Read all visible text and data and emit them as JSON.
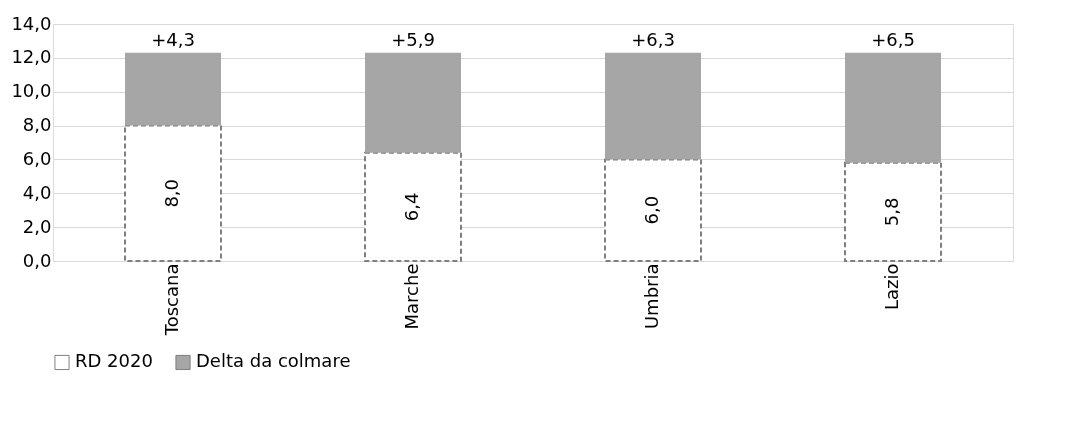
{
  "chart_data": {
    "type": "bar",
    "stacked": true,
    "categories": [
      "Toscana",
      "Marche",
      "Umbria",
      "Lazio"
    ],
    "series": [
      {
        "name": "RD 2020",
        "color": "#ffffff",
        "line_style": "dashed",
        "values": [
          8.0,
          6.4,
          6.0,
          5.8
        ],
        "value_labels": [
          "8,0",
          "6,4",
          "6,0",
          "5,8"
        ]
      },
      {
        "name": "Delta da colmare",
        "color": "#a6a6a6",
        "values": [
          4.3,
          5.9,
          6.3,
          6.5
        ],
        "value_labels": [
          "+4,3",
          "+5,9",
          "+6,3",
          "+6,5"
        ]
      }
    ],
    "ylim": [
      0,
      14
    ],
    "yticks": [
      {
        "value": 0,
        "label": "0,0"
      },
      {
        "value": 2,
        "label": "2,0"
      },
      {
        "value": 4,
        "label": "4,0"
      },
      {
        "value": 6,
        "label": "6,0"
      },
      {
        "value": 8,
        "label": "8,0"
      },
      {
        "value": 10,
        "label": "10,0"
      },
      {
        "value": 12,
        "label": "12,0"
      },
      {
        "value": 14,
        "label": "14,0"
      }
    ],
    "grid": "y",
    "legend": "bottom"
  }
}
